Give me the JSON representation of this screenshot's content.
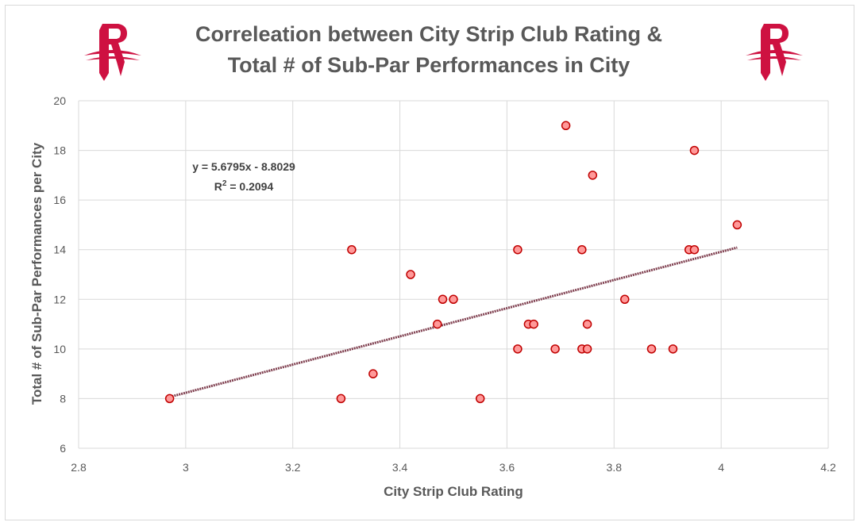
{
  "chart_data": {
    "type": "scatter",
    "title_line1": "Correleation between City Strip Club Rating &",
    "title_line2": "Total # of Sub-Par Performances in City",
    "xlabel": "City Strip Club Rating",
    "ylabel": "Total # of Sub-Par Performances per City",
    "xlim": [
      2.8,
      4.2
    ],
    "ylim": [
      6,
      20
    ],
    "x_ticks": [
      2.8,
      3,
      3.2,
      3.4,
      3.6,
      3.8,
      4,
      4.2
    ],
    "x_tick_labels": [
      "2.8",
      "3",
      "3.2",
      "3.4",
      "3.6",
      "3.8",
      "4",
      "4.2"
    ],
    "y_ticks": [
      6,
      8,
      10,
      12,
      14,
      16,
      18,
      20
    ],
    "y_tick_labels": [
      "6",
      "8",
      "10",
      "12",
      "14",
      "16",
      "18",
      "20"
    ],
    "grid": true,
    "marker_color": "#ff9999",
    "marker_edge_color": "#c00000",
    "trendline_color": "#7f3f4f",
    "points": [
      {
        "x": 2.97,
        "y": 8
      },
      {
        "x": 3.29,
        "y": 8
      },
      {
        "x": 3.31,
        "y": 14
      },
      {
        "x": 3.35,
        "y": 9
      },
      {
        "x": 3.42,
        "y": 13
      },
      {
        "x": 3.47,
        "y": 11
      },
      {
        "x": 3.48,
        "y": 12
      },
      {
        "x": 3.5,
        "y": 12
      },
      {
        "x": 3.55,
        "y": 8
      },
      {
        "x": 3.62,
        "y": 14
      },
      {
        "x": 3.62,
        "y": 10
      },
      {
        "x": 3.64,
        "y": 11
      },
      {
        "x": 3.65,
        "y": 11
      },
      {
        "x": 3.69,
        "y": 10
      },
      {
        "x": 3.71,
        "y": 19
      },
      {
        "x": 3.74,
        "y": 14
      },
      {
        "x": 3.74,
        "y": 10
      },
      {
        "x": 3.75,
        "y": 11
      },
      {
        "x": 3.75,
        "y": 10
      },
      {
        "x": 3.76,
        "y": 17
      },
      {
        "x": 3.82,
        "y": 12
      },
      {
        "x": 3.87,
        "y": 10
      },
      {
        "x": 3.91,
        "y": 10
      },
      {
        "x": 3.94,
        "y": 14
      },
      {
        "x": 3.95,
        "y": 14
      },
      {
        "x": 3.95,
        "y": 18
      },
      {
        "x": 4.03,
        "y": 15
      }
    ],
    "trendline": {
      "slope": 5.6795,
      "intercept": -8.8029,
      "x_range": [
        2.97,
        4.03
      ],
      "equation": "y = 5.6795x - 8.8029",
      "r2_label": "R",
      "r2_sup": "2",
      "r2_value": " = 0.2094"
    }
  },
  "logos": [
    {
      "name": "rockets-logo-left",
      "color": "#ce1141"
    },
    {
      "name": "rockets-logo-right",
      "color": "#ce1141"
    }
  ]
}
